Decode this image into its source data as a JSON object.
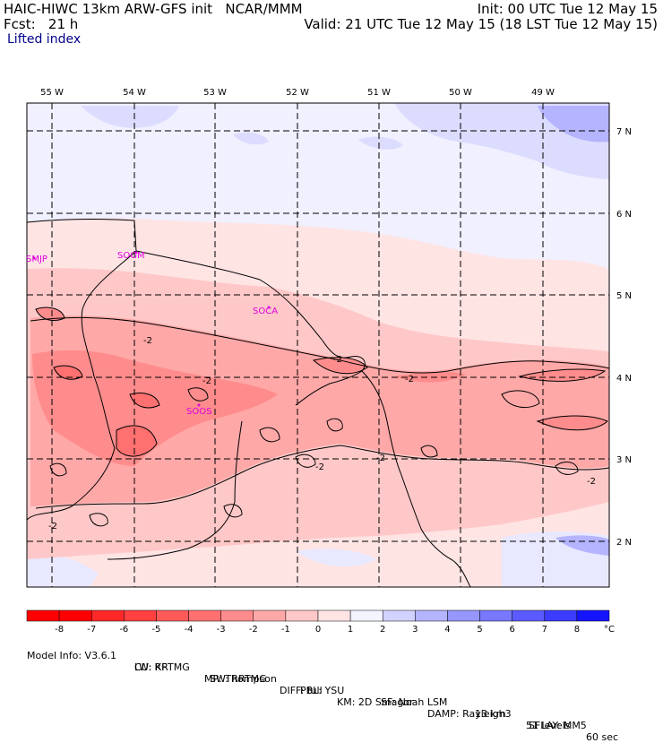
{
  "header": {
    "line1_left": "HAIC-HIWC 13km ARW-GFS init   NCAR/MMM",
    "line1_right": "Init: 00 UTC Tue 12 May 15",
    "line2_left": "Fcst:   21 h",
    "line2_right": "Valid: 21 UTC Tue 12 May 15 (18 LST Tue 12 May 15)",
    "field_name": "Lifted index"
  },
  "map": {
    "lon_labels": [
      "55 W",
      "54 W",
      "53 W",
      "52 W",
      "51 W",
      "50 W",
      "49 W"
    ],
    "lat_labels": [
      "7 N",
      "6 N",
      "5 N",
      "4 N",
      "3 N",
      "2 N"
    ],
    "stations": [
      "SMJP",
      "SOGM",
      "SOCA",
      "SOOS"
    ],
    "contour_labels": [
      "-2",
      "-2",
      "-2",
      "-2",
      "-2",
      "-2",
      "-2",
      "-2"
    ]
  },
  "colorbar": {
    "ticks": [
      "-8",
      "-7",
      "-6",
      "-5",
      "-4",
      "-3",
      "-2",
      "-1",
      "0",
      "1",
      "2",
      "3",
      "4",
      "5",
      "6",
      "7",
      "8"
    ],
    "unit": "°C",
    "colors": [
      "#ff0000",
      "#ff2828",
      "#ff4040",
      "#ff5a5a",
      "#ff7070",
      "#ff8c8c",
      "#ffa8a8",
      "#ffc8c8",
      "#ffe4e4",
      "#f4f4ff",
      "#d2d2ff",
      "#b4b4ff",
      "#9696ff",
      "#7878ff",
      "#5a5aff",
      "#3c3cff",
      "#1414ff"
    ]
  },
  "footer": {
    "line1": [
      "Model Info: V3.6.1",
      "CU: KF",
      "MP: Thompson",
      "PBL: YSU",
      "SF: Noah LSM",
      "13 km",
      "51 levels",
      "60 sec"
    ],
    "line2": [
      "LW: RRTMG",
      "SW: RRTMG",
      "DIFF: full",
      "KM: 2D Smagor",
      "DAMP: Rayleigh3",
      "SFLAY: MM5"
    ]
  }
}
